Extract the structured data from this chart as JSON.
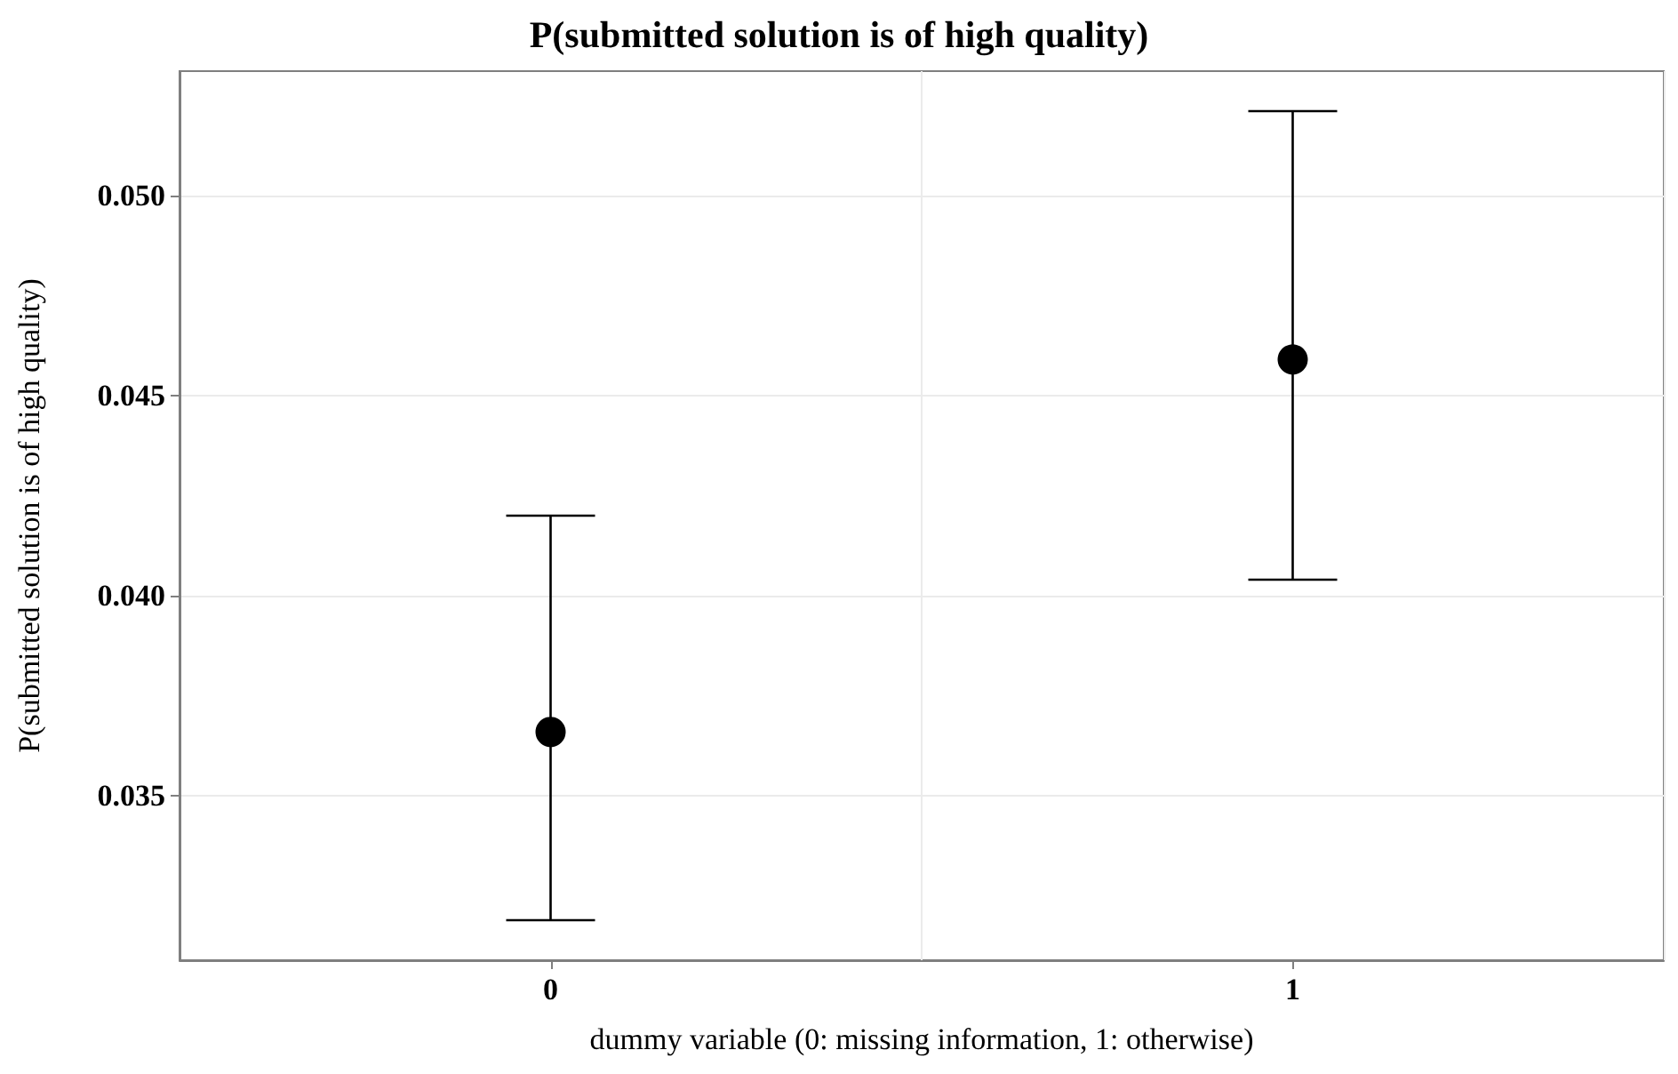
{
  "chart_data": {
    "type": "scatter",
    "title": "P(submitted solution is of high quality)",
    "xlabel": "dummy variable (0: missing information, 1: otherwise)",
    "ylabel": "P(submitted solution is of high quality)",
    "categories": [
      "0",
      "1"
    ],
    "values": [
      0.0366,
      0.0459
    ],
    "errors": [
      [
        0.0319,
        0.042
      ],
      [
        0.0404,
        0.0521
      ]
    ],
    "color": "#000000",
    "marker": "circle",
    "ylim": [
      0.0309,
      0.0531
    ],
    "yticks": [
      {
        "value": 0.035,
        "label": "0.035"
      },
      {
        "value": 0.04,
        "label": "0.040"
      },
      {
        "value": 0.045,
        "label": "0.045"
      },
      {
        "value": 0.05,
        "label": "0.050"
      }
    ],
    "grid": true
  }
}
